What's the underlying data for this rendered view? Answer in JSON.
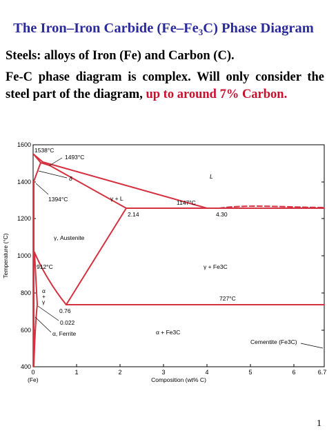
{
  "title": {
    "before": "The Iron–Iron Carbide (Fe–Fe",
    "sub": "3",
    "after": "C) Phase Diagram"
  },
  "line1": "Steels: alloys of Iron (Fe) and Carbon (C).",
  "para": {
    "text": "Fe-C phase diagram is complex. Will only consider the steel part of the diagram, ",
    "highlight": "up to around 7% Carbon."
  },
  "colors": {
    "title": "#2b2b9c",
    "highlight": "#c8102e",
    "curve": "#d4303f"
  },
  "chart_data": {
    "type": "diagram",
    "xlabel": "Composition (wt% C)",
    "ylabel": "Temperature (°C)",
    "xlim": [
      0,
      6.7
    ],
    "ylim": [
      400,
      1600
    ],
    "x_ticks": [
      "0",
      "1",
      "2",
      "3",
      "4",
      "5",
      "6",
      "6.7"
    ],
    "y_ticks": [
      "400",
      "600",
      "800",
      "1000",
      "1200",
      "1400",
      "1600"
    ],
    "x_sublabel": "(Fe)",
    "annotations": {
      "t1538": "1538°C",
      "t1493": "1493°C",
      "t1394": "1394°C",
      "t1147": "1147°C",
      "t912": "912°C",
      "t727": "727°C",
      "c214": "2.14",
      "c430": "4.30",
      "c076": "0.76",
      "c0022": "0.022",
      "delta": "δ",
      "L": "L",
      "gammaL": "γ + L",
      "austenite": "γ, Austenite",
      "gammaFe3C": "γ + Fe3C",
      "alpha": "α",
      "plus": "+",
      "gamma": "γ",
      "ferrite": "α, Ferrite",
      "alphaFe3C": "α + Fe3C",
      "cementite": "Cementite (Fe3C)"
    }
  },
  "page_number": "1"
}
